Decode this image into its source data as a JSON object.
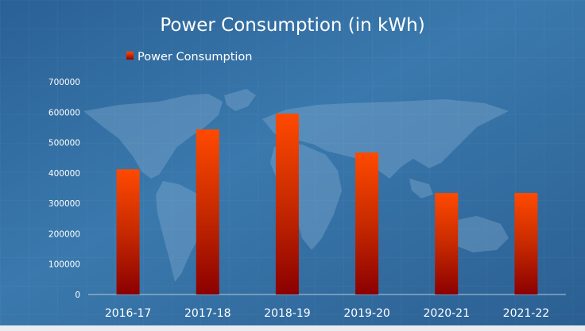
{
  "chart_data": {
    "type": "bar",
    "title": "Power Consumption (in kWh)",
    "xlabel": "",
    "ylabel": "",
    "categories": [
      "2016-17",
      "2017-18",
      "2018-19",
      "2019-20",
      "2020-21",
      "2021-22"
    ],
    "series": [
      {
        "name": "Power Consumption",
        "values": [
          412000,
          543000,
          595000,
          467000,
          334000,
          334000
        ],
        "color_top": "#ff4a00",
        "color_bottom": "#8b0000"
      }
    ],
    "ylim": [
      0,
      700000
    ],
    "yticks": [
      "0",
      "100000",
      "200000",
      "300000",
      "400000",
      "500000",
      "600000",
      "700000"
    ],
    "legend": {
      "position": "top-left",
      "label": "Power Consumption"
    },
    "grid": true,
    "background_color": "#2e6aa0"
  }
}
